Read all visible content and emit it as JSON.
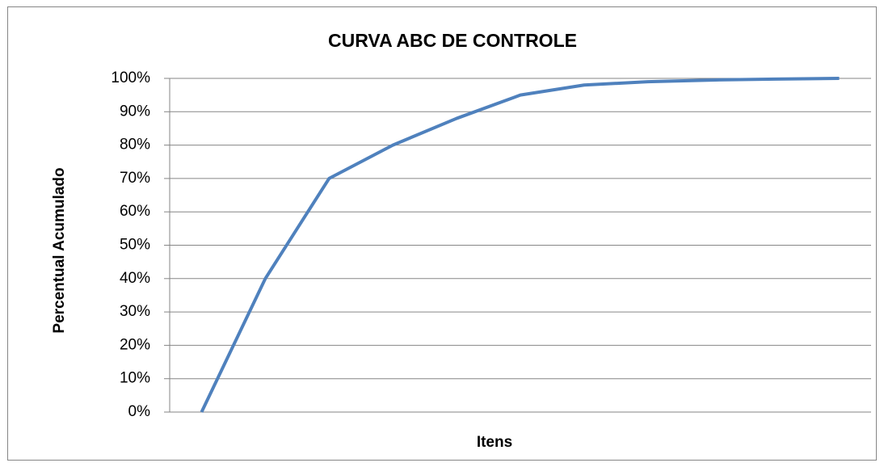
{
  "chart_data": {
    "type": "line",
    "title": "CURVA ABC DE CONTROLE",
    "x_label": "Itens",
    "y_label": "Percentual Acumulado",
    "categories": [
      null,
      null,
      null,
      null,
      null,
      null,
      null,
      null,
      null,
      null,
      null
    ],
    "series": [
      {
        "name": null,
        "color": "#4f81bd",
        "values": [
          0,
          40,
          70,
          80,
          88,
          95,
          98,
          99,
          99.5,
          99.8,
          100
        ]
      }
    ],
    "ylim": [
      0,
      100
    ],
    "yticks": [
      {
        "value": 0,
        "label": "0%"
      },
      {
        "value": 10,
        "label": "10%"
      },
      {
        "value": 20,
        "label": "20%"
      },
      {
        "value": 30,
        "label": "30%"
      },
      {
        "value": 40,
        "label": "40%"
      },
      {
        "value": 50,
        "label": "50%"
      },
      {
        "value": 60,
        "label": "60%"
      },
      {
        "value": 70,
        "label": "70%"
      },
      {
        "value": 80,
        "label": "80%"
      },
      {
        "value": 90,
        "label": "90%"
      },
      {
        "value": 100,
        "label": "100%"
      }
    ],
    "grid": true
  }
}
